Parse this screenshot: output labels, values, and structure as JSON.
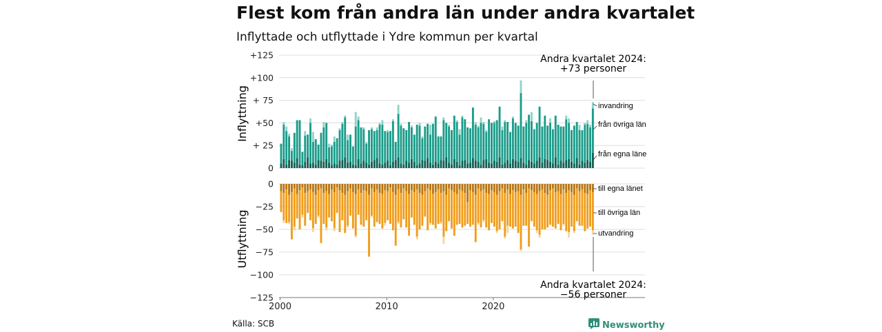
{
  "title": "Flest kom från andra län under andra kvartalet",
  "subtitle": "Inflyttade och utflyttade i Ydre kommun per kvartal",
  "source": "Källa: SCB",
  "brand": {
    "name": "Newsworthy",
    "icon": "newsworthy-logo-icon"
  },
  "colors": {
    "in_egna": "#125e52",
    "in_ovriga": "#1a9c8a",
    "in_invandring": "#8fd3c8",
    "ut_egna": "#b77510",
    "ut_ovriga": "#f09d1a",
    "ut_utvandring": "#f8d59a",
    "grid": "#dddddd",
    "axis": "#777777"
  },
  "annotations": {
    "top_line1": "Andra kvartalet 2024:",
    "top_line2": "+73 personer",
    "bottom_line1": "Andra kvartalet 2024:",
    "bottom_line2": "−56 personer"
  },
  "chart_data": [
    {
      "type": "bar",
      "stacked": true,
      "ylabel": "Inflyttning",
      "ylim": [
        0,
        125
      ],
      "yticks": [
        0,
        25,
        50,
        75,
        100,
        125
      ],
      "yticklabels": [
        "0",
        "+ 25",
        "+50",
        "+ 75",
        "+100",
        "+125"
      ],
      "grid": true,
      "xstart": 2000,
      "xticks": [
        "2000",
        "2010",
        "2020"
      ],
      "series": [
        {
          "name": "från egna läne",
          "values": [
            5,
            10,
            4,
            9,
            8,
            6,
            11,
            4,
            3,
            7,
            12,
            5,
            6,
            4,
            9,
            8,
            7,
            10,
            6,
            3,
            5,
            4,
            8,
            9,
            12,
            6,
            7,
            4,
            3,
            10,
            5,
            8,
            6,
            4,
            7,
            9,
            11,
            5,
            4,
            6,
            8,
            3,
            7,
            9,
            12,
            5,
            4,
            8,
            6,
            10,
            7,
            3,
            5,
            9,
            8,
            11,
            6,
            4,
            7,
            5,
            9,
            8,
            12,
            6,
            4,
            10,
            7,
            3,
            8,
            9,
            5,
            6,
            11,
            8,
            7,
            4,
            9,
            10,
            6,
            5,
            8,
            7,
            12,
            4,
            6,
            9,
            5,
            10,
            8,
            7,
            11,
            6,
            4,
            9,
            7,
            5,
            8,
            12,
            6,
            10,
            9,
            7,
            5,
            12,
            4,
            8,
            6,
            9,
            10,
            7,
            5,
            11,
            4,
            8,
            6,
            9,
            7,
            17
          ]
        },
        {
          "name": "från övriga län",
          "values": [
            22,
            38,
            37,
            26,
            11,
            33,
            42,
            49,
            15,
            29,
            25,
            45,
            23,
            28,
            17,
            31,
            38,
            40,
            17,
            21,
            24,
            29,
            34,
            40,
            44,
            25,
            30,
            20,
            43,
            43,
            40,
            35,
            21,
            38,
            36,
            32,
            31,
            43,
            44,
            35,
            32,
            38,
            45,
            20,
            48,
            42,
            40,
            34,
            45,
            35,
            30,
            45,
            42,
            24,
            38,
            38,
            31,
            45,
            50,
            30,
            26,
            45,
            38,
            40,
            38,
            48,
            44,
            34,
            48,
            45,
            40,
            38,
            56,
            40,
            38,
            46,
            40,
            30,
            48,
            45,
            42,
            46,
            56,
            38,
            45,
            42,
            35,
            45,
            42,
            40,
            72,
            40,
            46,
            50,
            45,
            38,
            42,
            56,
            40,
            48,
            38,
            43,
            38,
            46,
            44,
            38,
            40,
            45,
            40,
            35,
            42,
            40,
            38,
            34,
            42,
            40,
            38,
            49
          ]
        },
        {
          "name": "invandring",
          "values": [
            0,
            3,
            5,
            3,
            3,
            0,
            0,
            0,
            0,
            5,
            0,
            5,
            11,
            0,
            0,
            0,
            6,
            0,
            4,
            2,
            6,
            0,
            2,
            2,
            2,
            6,
            0,
            0,
            16,
            4,
            0,
            2,
            2,
            0,
            2,
            0,
            3,
            2,
            5,
            0,
            2,
            0,
            2,
            0,
            10,
            2,
            0,
            0,
            0,
            2,
            0,
            0,
            3,
            2,
            0,
            0,
            11,
            0,
            0,
            0,
            0,
            3,
            0,
            2,
            0,
            0,
            2,
            6,
            2,
            0,
            0,
            0,
            0,
            3,
            2,
            6,
            2,
            2,
            0,
            0,
            2,
            0,
            0,
            4,
            2,
            0,
            0,
            2,
            0,
            0,
            14,
            0,
            3,
            0,
            10,
            0,
            0,
            0,
            0,
            0,
            0,
            5,
            0,
            0,
            0,
            0,
            0,
            4,
            5,
            0,
            0,
            0,
            6,
            0,
            2,
            4,
            3,
            7
          ]
        }
      ]
    },
    {
      "type": "bar",
      "stacked": true,
      "ylabel": "Utflyttning",
      "ylim": [
        -125,
        0
      ],
      "yticks": [
        0,
        -25,
        -50,
        -75,
        -100,
        -125
      ],
      "yticklabels": [
        "0",
        "−25",
        "−50",
        "−75",
        "−100",
        "−125"
      ],
      "grid": true,
      "xstart": 2000,
      "xticks": [
        "2000",
        "2010",
        "2020"
      ],
      "series": [
        {
          "name": "till egna länet",
          "values": [
            -8,
            -10,
            -6,
            -12,
            -9,
            -5,
            -11,
            -7,
            -4,
            -10,
            -8,
            -6,
            -9,
            -12,
            -7,
            -5,
            -10,
            -8,
            -11,
            -6,
            -9,
            -4,
            -7,
            -10,
            -12,
            -8,
            -5,
            -9,
            -11,
            -6,
            -10,
            -7,
            -8,
            -12,
            -5,
            -9,
            -6,
            -10,
            -11,
            -7,
            -8,
            -4,
            -9,
            -12,
            -6,
            -10,
            -5,
            -8,
            -11,
            -7,
            -9,
            -6,
            -10,
            -12,
            -8,
            -5,
            -7,
            -11,
            -9,
            -6,
            -10,
            -8,
            -12,
            -5,
            -7,
            -9,
            -11,
            -6,
            -8,
            -10,
            -20,
            -7,
            -9,
            -12,
            -5,
            -8,
            -6,
            -10,
            -11,
            -7,
            -9,
            -12,
            -8,
            -5,
            -10,
            -6,
            -11,
            -7,
            -9,
            -8,
            -12,
            -6,
            -10,
            -5,
            -7,
            -9,
            -11,
            -8,
            -6,
            -10,
            -12,
            -7,
            -5,
            -9,
            -8,
            -11,
            -6,
            -10,
            -7,
            -9,
            -12,
            -5,
            -8,
            -6,
            -10,
            -11,
            -7,
            -9
          ]
        },
        {
          "name": "till övriga län",
          "values": [
            -23,
            -30,
            -37,
            -30,
            -52,
            -42,
            -27,
            -43,
            -30,
            -36,
            -24,
            -34,
            -40,
            -32,
            -28,
            -60,
            -34,
            -40,
            -26,
            -35,
            -40,
            -28,
            -46,
            -30,
            -42,
            -38,
            -30,
            -40,
            -46,
            -28,
            -35,
            -40,
            -32,
            -68,
            -30,
            -38,
            -36,
            -34,
            -38,
            -36,
            -32,
            -40,
            -42,
            -56,
            -36,
            -38,
            -34,
            -40,
            -46,
            -30,
            -36,
            -52,
            -40,
            -34,
            -28,
            -46,
            -36,
            -34,
            -40,
            -38,
            -32,
            -50,
            -40,
            -36,
            -42,
            -48,
            -34,
            -38,
            -40,
            -36,
            -24,
            -40,
            -36,
            -52,
            -38,
            -40,
            -34,
            -38,
            -40,
            -36,
            -38,
            -40,
            -42,
            -36,
            -48,
            -40,
            -36,
            -42,
            -38,
            -46,
            -60,
            -40,
            -36,
            -64,
            -34,
            -38,
            -40,
            -48,
            -44,
            -40,
            -36,
            -38,
            -42,
            -40,
            -36,
            -40,
            -38,
            -42,
            -46,
            -38,
            -40,
            -36,
            -38,
            -40,
            -42,
            -38,
            -40,
            -42
          ]
        },
        {
          "name": "utvandring",
          "values": [
            0,
            -3,
            0,
            -2,
            0,
            -4,
            0,
            0,
            -3,
            0,
            0,
            0,
            -4,
            0,
            -2,
            0,
            0,
            -3,
            0,
            0,
            -3,
            0,
            0,
            0,
            0,
            -2,
            0,
            0,
            -2,
            0,
            0,
            0,
            0,
            0,
            -2,
            0,
            0,
            0,
            0,
            -3,
            0,
            0,
            0,
            0,
            -2,
            0,
            0,
            0,
            0,
            0,
            0,
            -3,
            0,
            0,
            0,
            0,
            -2,
            0,
            0,
            0,
            -2,
            -8,
            0,
            0,
            0,
            0,
            0,
            0,
            0,
            0,
            0,
            0,
            0,
            0,
            -2,
            0,
            -2,
            0,
            0,
            0,
            0,
            -2,
            0,
            0,
            -2,
            -8,
            0,
            0,
            0,
            0,
            -2,
            0,
            0,
            0,
            0,
            0,
            -3,
            -3,
            0,
            0,
            0,
            0,
            0,
            0,
            0,
            0,
            -2,
            0,
            -6,
            0,
            -2,
            0,
            0,
            0,
            0,
            0,
            0,
            -5
          ]
        }
      ]
    }
  ],
  "legend_labels": {
    "in_invandring": "invandring",
    "in_ovriga": "från övriga län",
    "in_egna": "från egna läne",
    "ut_egna": "till egna länet",
    "ut_ovriga": "till övriga län",
    "ut_utvandring": "utvandring"
  }
}
